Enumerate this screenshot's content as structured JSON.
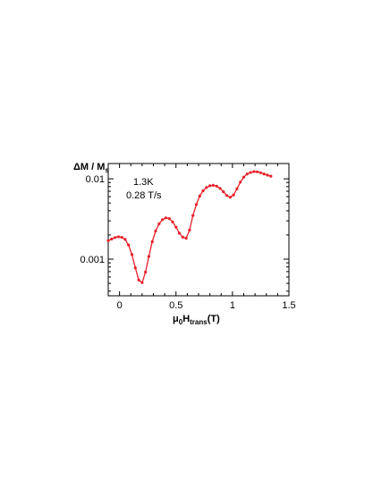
{
  "chart_data": {
    "type": "line",
    "ylabel": {
      "main": "ΔM / M",
      "sub": "s"
    },
    "xlabel": {
      "pre": "μ",
      "sub1": "0",
      "mid": "H",
      "sub2": "trans",
      "post": "(T)"
    },
    "annotations": [
      "1.3K",
      "0.28  T/s"
    ],
    "xlim": [
      -0.1,
      1.5
    ],
    "ylim": [
      0.00035,
      0.0155
    ],
    "yscale": "log",
    "x_ticks": [
      0,
      0.5,
      1,
      1.5
    ],
    "x_tick_labels": [
      "0",
      "0.5",
      "1",
      "1.5"
    ],
    "y_ticks": [
      0.001,
      0.01
    ],
    "y_tick_labels": [
      "0.001",
      "0.01"
    ],
    "grid": false,
    "line_color": "#e8202a",
    "series": [
      {
        "values_x": [
          -0.1,
          -0.07,
          -0.04,
          -0.01,
          0.02,
          0.05,
          0.08,
          0.11,
          0.14,
          0.17,
          0.2,
          0.23,
          0.26,
          0.29,
          0.32,
          0.35,
          0.38,
          0.41,
          0.44,
          0.47,
          0.5,
          0.53,
          0.56,
          0.59,
          0.62,
          0.65,
          0.68,
          0.71,
          0.74,
          0.77,
          0.8,
          0.83,
          0.86,
          0.89,
          0.92,
          0.95,
          0.98,
          1.01,
          1.04,
          1.07,
          1.1,
          1.13,
          1.16,
          1.19,
          1.22,
          1.25,
          1.28,
          1.31,
          1.34
        ],
        "values_y": [
          0.0017,
          0.00178,
          0.00186,
          0.0019,
          0.00187,
          0.00176,
          0.0015,
          0.00114,
          0.00078,
          0.00055,
          0.00051,
          0.00069,
          0.00108,
          0.00165,
          0.00224,
          0.00275,
          0.0031,
          0.00327,
          0.0032,
          0.0029,
          0.0025,
          0.0021,
          0.00188,
          0.00182,
          0.0023,
          0.0035,
          0.0048,
          0.0061,
          0.0071,
          0.0078,
          0.0082,
          0.0083,
          0.0081,
          0.0076,
          0.0069,
          0.0062,
          0.0059,
          0.0063,
          0.0075,
          0.0091,
          0.0105,
          0.0115,
          0.012,
          0.0123,
          0.0122,
          0.0119,
          0.0115,
          0.0111,
          0.0108
        ]
      }
    ]
  }
}
